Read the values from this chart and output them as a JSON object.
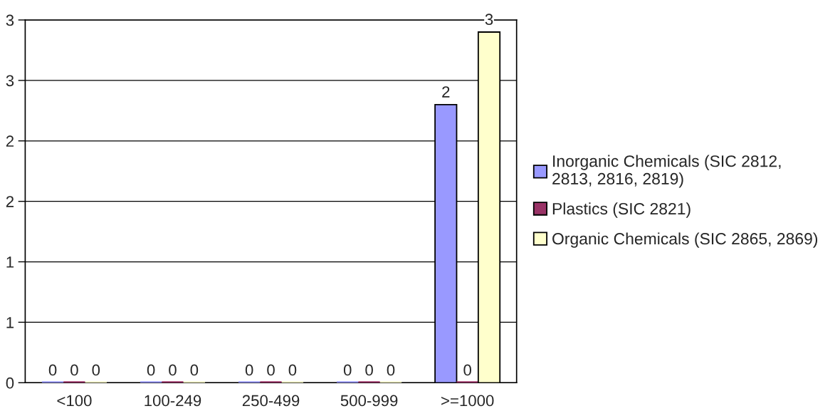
{
  "chart_data": {
    "type": "bar",
    "categories": [
      "<100",
      "100-249",
      "250-499",
      "500-999",
      ">=1000"
    ],
    "series": [
      {
        "name": "Inorganic Chemicals (SIC 2812,\n2813, 2816, 2819)",
        "color": "#9999ff",
        "values": [
          0,
          0,
          0,
          0,
          2.3
        ],
        "value_labels": [
          "0",
          "0",
          "0",
          "0",
          "2"
        ]
      },
      {
        "name": "Plastics (SIC 2821)",
        "color": "#993366",
        "values": [
          0,
          0,
          0,
          0,
          0
        ],
        "value_labels": [
          "0",
          "0",
          "0",
          "0",
          "0"
        ]
      },
      {
        "name": "Organic Chemicals (SIC 2865, 2869)",
        "color": "#ffffcc",
        "values": [
          0,
          0,
          0,
          0,
          2.9
        ],
        "value_labels": [
          "0",
          "0",
          "0",
          "0",
          "3"
        ]
      }
    ],
    "ylim": [
      0,
      3
    ],
    "yticks": [
      0,
      {
        "value": 0.5,
        "label": "1"
      },
      1,
      {
        "value": 1.5,
        "label": "2"
      },
      2,
      {
        "value": 2.5,
        "label": "3"
      },
      3
    ],
    "grid": "y",
    "legend": "right"
  }
}
